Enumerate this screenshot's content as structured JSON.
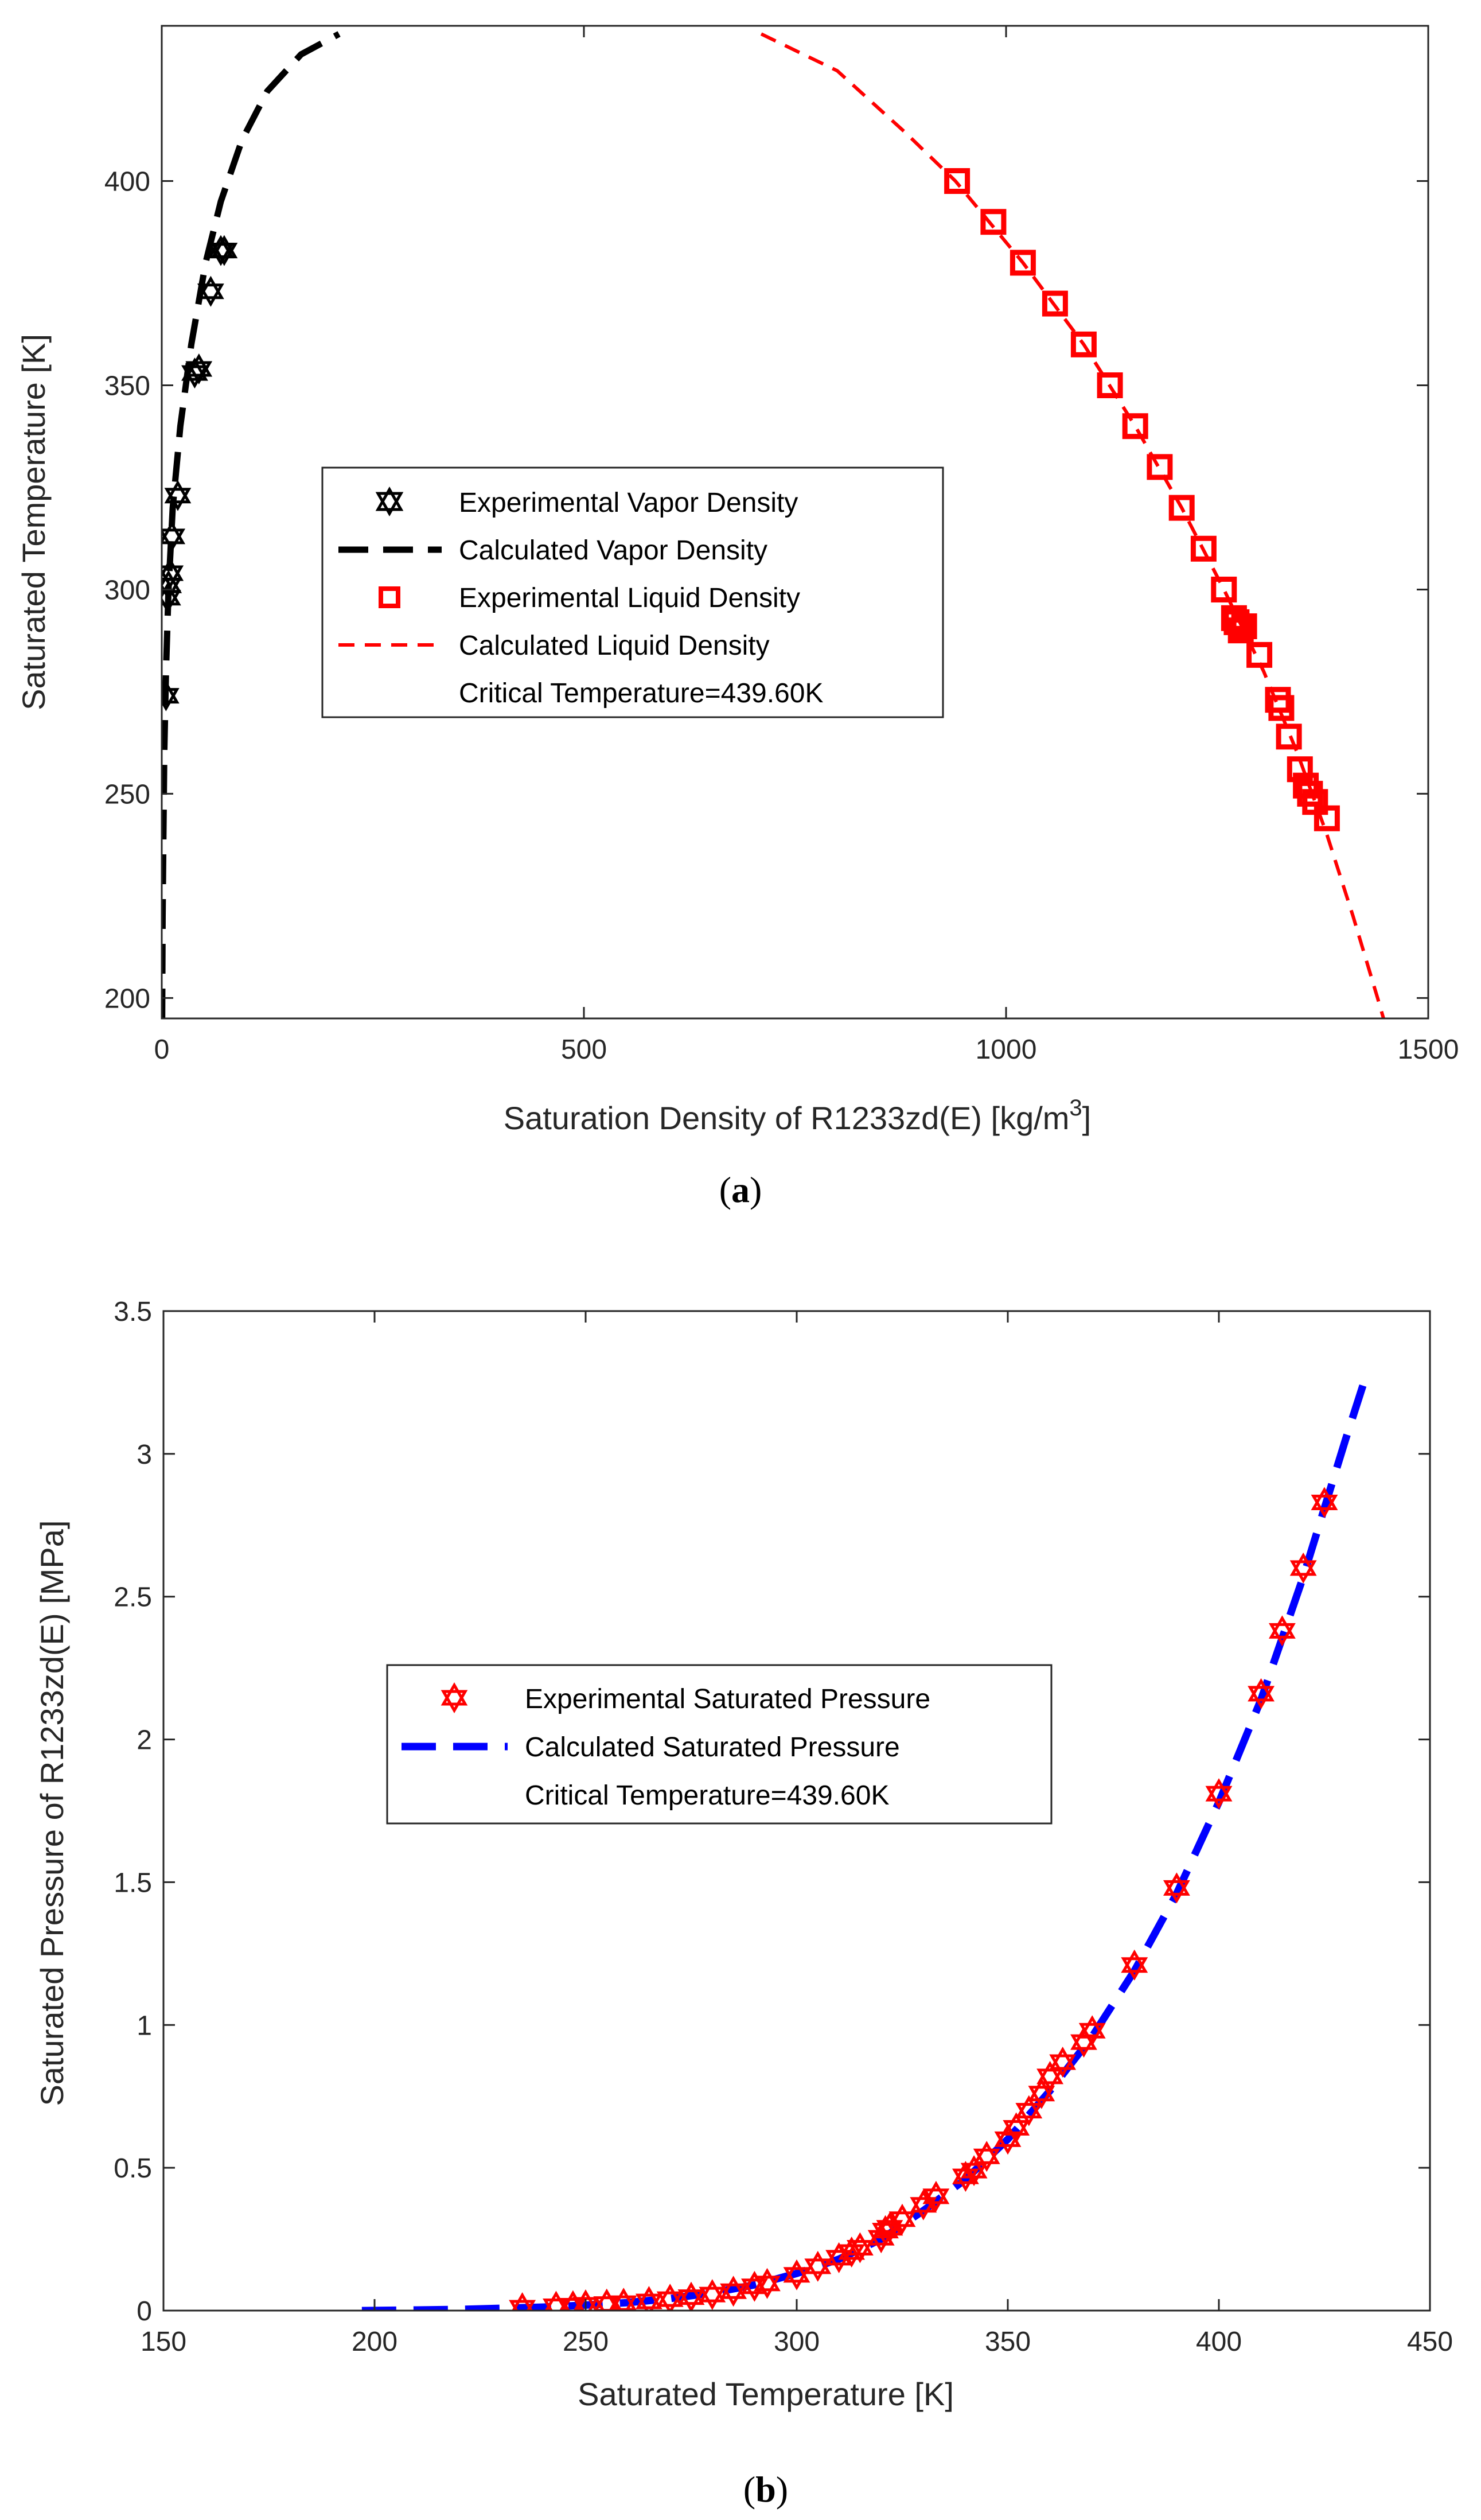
{
  "chart_data": [
    {
      "panel": "(a)",
      "panel_letter": "a",
      "type": "scatter",
      "xlabel_main": "Saturation Density of R1233zd(E) [kg/m",
      "xlabel_sup": "3",
      "xlabel_tail": "]",
      "ylabel": "Saturated Temperature [K]",
      "xlim": [
        0,
        1500
      ],
      "ylim": [
        195,
        438
      ],
      "xticks": [
        0,
        500,
        1000,
        1500
      ],
      "yticks": [
        200,
        250,
        300,
        350,
        400
      ],
      "legend": [
        "Experimental Vapor Density",
        "Calculated Vapor Density",
        "Experimental Liquid Density",
        "Calculated Liquid Density",
        "Critical Temperature=439.60K"
      ],
      "series": [
        {
          "name": "Experimental Vapor Density",
          "kind": "markers",
          "marker": "hexagram",
          "color": "#000000",
          "points": [
            [
              5,
              274
            ],
            [
              7,
              298
            ],
            [
              8,
              301
            ],
            [
              10,
              304
            ],
            [
              12,
              313
            ],
            [
              19,
              323
            ],
            [
              39,
              353
            ],
            [
              44,
              354
            ],
            [
              58,
              373
            ],
            [
              70,
              383
            ],
            [
              74,
              383
            ]
          ]
        },
        {
          "name": "Calculated Vapor Density",
          "kind": "line",
          "style": "dashed",
          "color": "#000000",
          "points": [
            [
              0.5,
              195
            ],
            [
              1,
              220
            ],
            [
              2,
              240
            ],
            [
              3,
              260
            ],
            [
              5,
              280
            ],
            [
              8,
              300
            ],
            [
              13,
              320
            ],
            [
              22,
              340
            ],
            [
              35,
              360
            ],
            [
              52,
              380
            ],
            [
              70,
              395
            ],
            [
              95,
              410
            ],
            [
              125,
              422
            ],
            [
              165,
              431
            ],
            [
              210,
              436
            ]
          ]
        },
        {
          "name": "Experimental Liquid Density",
          "kind": "markers",
          "marker": "square",
          "color": "#ff0000",
          "points": [
            [
              942,
              400
            ],
            [
              985,
              390
            ],
            [
              1020,
              380
            ],
            [
              1058,
              370
            ],
            [
              1092,
              360
            ],
            [
              1123,
              350
            ],
            [
              1153,
              340
            ],
            [
              1182,
              330
            ],
            [
              1208,
              320
            ],
            [
              1234,
              310
            ],
            [
              1258,
              300
            ],
            [
              1270,
              293
            ],
            [
              1273,
              292
            ],
            [
              1278,
              290
            ],
            [
              1282,
              291
            ],
            [
              1300,
              284
            ],
            [
              1322,
              273
            ],
            [
              1326,
              271
            ],
            [
              1335,
              264
            ],
            [
              1348,
              256
            ],
            [
              1355,
              252
            ],
            [
              1360,
              250
            ],
            [
              1366,
              248
            ],
            [
              1380,
              244
            ]
          ]
        },
        {
          "name": "Calculated Liquid Density",
          "kind": "line",
          "style": "dashed",
          "color": "#ff0000",
          "points": [
            [
              710,
              436
            ],
            [
              800,
              427
            ],
            [
              880,
              412
            ],
            [
              940,
              400
            ],
            [
              1020,
              380
            ],
            [
              1092,
              360
            ],
            [
              1153,
              340
            ],
            [
              1208,
              320
            ],
            [
              1258,
              300
            ],
            [
              1305,
              280
            ],
            [
              1345,
              260
            ],
            [
              1380,
              240
            ],
            [
              1411,
              220
            ],
            [
              1440,
              200
            ],
            [
              1447,
              195
            ]
          ]
        }
      ]
    },
    {
      "panel": "(b)",
      "panel_letter": "b",
      "type": "scatter",
      "xlabel": "Saturated Temperature [K]",
      "ylabel": "Saturated Pressure of R1233zd(E) [MPa]",
      "xlim": [
        150,
        450
      ],
      "ylim": [
        0,
        3.5
      ],
      "xticks": [
        150,
        200,
        250,
        300,
        350,
        400,
        450
      ],
      "yticks": [
        0,
        0.5,
        1,
        1.5,
        2,
        2.5,
        3,
        3.5
      ],
      "legend": [
        "Experimental Saturated Pressure",
        "Calculated Saturated Pressure",
        "Critical Temperature=439.60K"
      ],
      "series": [
        {
          "name": "Experimental Saturated Pressure",
          "kind": "markers",
          "marker": "hexagram",
          "color": "#ff0000",
          "points": [
            [
              235,
              0.01
            ],
            [
              243,
              0.015
            ],
            [
              247,
              0.017
            ],
            [
              250,
              0.02
            ],
            [
              255,
              0.023
            ],
            [
              259,
              0.026
            ],
            [
              265,
              0.032
            ],
            [
              270,
              0.04
            ],
            [
              275,
              0.047
            ],
            [
              280,
              0.056
            ],
            [
              285,
              0.068
            ],
            [
              290,
              0.085
            ],
            [
              293,
              0.095
            ],
            [
              300,
              0.125
            ],
            [
              305,
              0.155
            ],
            [
              310,
              0.185
            ],
            [
              313,
              0.205
            ],
            [
              315,
              0.22
            ],
            [
              320,
              0.255
            ],
            [
              321,
              0.28
            ],
            [
              322,
              0.29
            ],
            [
              325,
              0.32
            ],
            [
              330,
              0.37
            ],
            [
              333,
              0.4
            ],
            [
              340,
              0.47
            ],
            [
              342,
              0.49
            ],
            [
              345,
              0.54
            ],
            [
              350,
              0.6
            ],
            [
              352,
              0.64
            ],
            [
              355,
              0.7
            ],
            [
              358,
              0.76
            ],
            [
              360,
              0.82
            ],
            [
              363,
              0.87
            ],
            [
              368,
              0.94
            ],
            [
              370,
              0.98
            ],
            [
              380,
              1.21
            ],
            [
              390,
              1.48
            ],
            [
              400,
              1.81
            ],
            [
              410,
              2.16
            ],
            [
              415,
              2.38
            ],
            [
              420,
              2.6
            ],
            [
              425,
              2.83
            ]
          ]
        },
        {
          "name": "Calculated Saturated Pressure",
          "kind": "line",
          "style": "dashed",
          "color": "#0000ff",
          "points": [
            [
              197,
              0.0
            ],
            [
              210,
              0.002
            ],
            [
              220,
              0.004
            ],
            [
              230,
              0.008
            ],
            [
              240,
              0.012
            ],
            [
              250,
              0.019
            ],
            [
              260,
              0.028
            ],
            [
              270,
              0.042
            ],
            [
              280,
              0.062
            ],
            [
              290,
              0.09
            ],
            [
              300,
              0.13
            ],
            [
              310,
              0.18
            ],
            [
              320,
              0.25
            ],
            [
              330,
              0.35
            ],
            [
              340,
              0.46
            ],
            [
              350,
              0.6
            ],
            [
              360,
              0.77
            ],
            [
              370,
              0.96
            ],
            [
              380,
              1.19
            ],
            [
              390,
              1.46
            ],
            [
              400,
              1.78
            ],
            [
              410,
              2.14
            ],
            [
              420,
              2.57
            ],
            [
              430,
              3.05
            ],
            [
              435,
              3.28
            ]
          ]
        }
      ]
    }
  ]
}
